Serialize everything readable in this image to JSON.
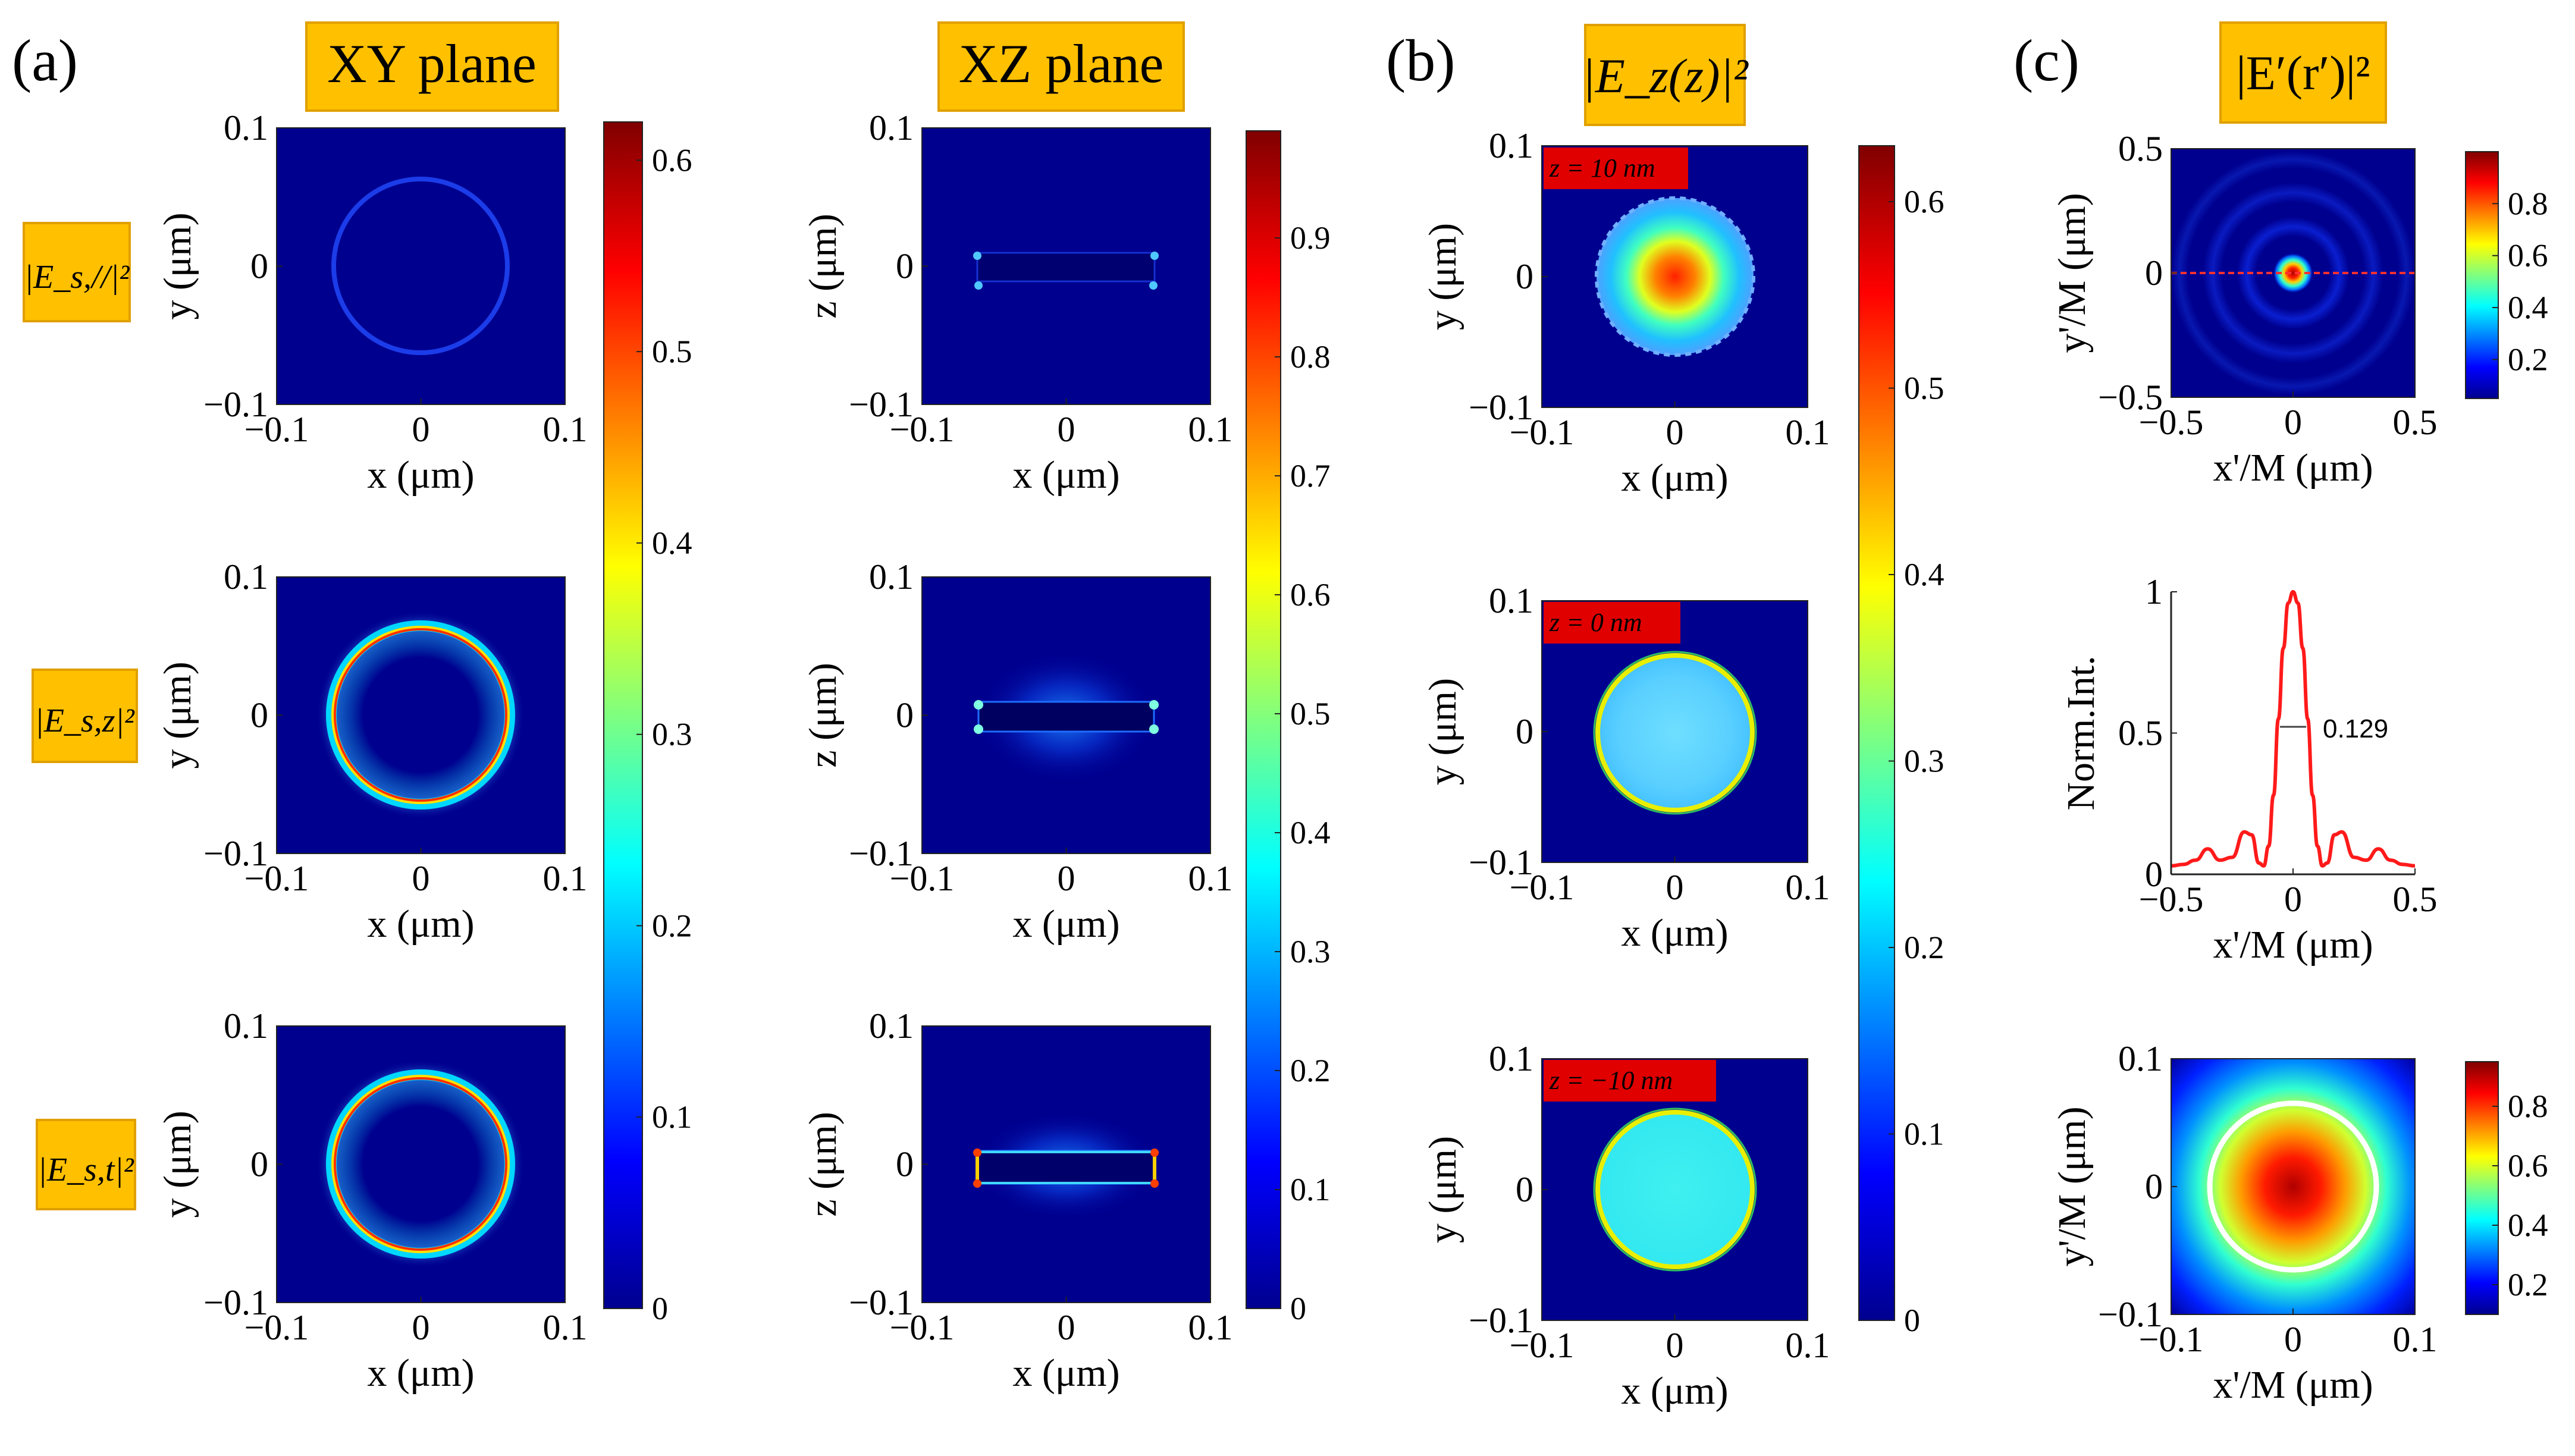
{
  "panel_labels": [
    "(a)",
    "(b)",
    "(c)"
  ],
  "column_headers": {
    "xy": "XY plane",
    "xz": "XZ plane",
    "b": "|E_z(z)|²",
    "c": "|E′(r′)|²"
  },
  "row_labels": [
    "|E_s,//|²",
    "|E_s,z|²",
    "|E_s,t|²"
  ],
  "z_tags": [
    "z = 10 nm",
    "z = 0 nm",
    "z = −10 nm"
  ],
  "colors": {
    "badge": "#FFC000",
    "badge_border": "#E0A000",
    "field_bg": "#00008F",
    "red_tag": "#E00000",
    "profile_line": "#FF1A1A"
  },
  "chart_data": [
    {
      "type": "heatmap",
      "panel": "a",
      "row": 1,
      "plane": "XY",
      "title": "XY plane",
      "xlabel": "x (μm)",
      "ylabel": "y (μm)",
      "xlim": [
        -0.1,
        0.1
      ],
      "ylim": [
        -0.1,
        0.1
      ],
      "xticks": [
        "−0.1",
        "0",
        "0.1"
      ],
      "yticks": [
        "0.1",
        "0",
        "−0.1"
      ],
      "feature": "faint ring of radius 0.06 μm",
      "cbar": "a_xy"
    },
    {
      "type": "heatmap",
      "panel": "a",
      "row": 2,
      "plane": "XY",
      "xlabel": "x (μm)",
      "ylabel": "y (μm)",
      "xlim": [
        -0.1,
        0.1
      ],
      "ylim": [
        -0.1,
        0.1
      ],
      "xticks": [
        "−0.1",
        "0",
        "0.1"
      ],
      "yticks": [
        "0.1",
        "0",
        "−0.1"
      ],
      "feature": "bright ring of radius 0.06 μm",
      "cbar": "a_xy"
    },
    {
      "type": "heatmap",
      "panel": "a",
      "row": 3,
      "plane": "XY",
      "xlabel": "x (μm)",
      "ylabel": "y (μm)",
      "xlim": [
        -0.1,
        0.1
      ],
      "ylim": [
        -0.1,
        0.1
      ],
      "xticks": [
        "−0.1",
        "0",
        "0.1"
      ],
      "yticks": [
        "0.1",
        "0",
        "−0.1"
      ],
      "feature": "bright ring of radius 0.06 μm",
      "cbar": "a_xy"
    },
    {
      "type": "heatmap",
      "panel": "a",
      "row": 1,
      "plane": "XZ",
      "title": "XZ plane",
      "xlabel": "x (μm)",
      "ylabel": "z (μm)",
      "xlim": [
        -0.1,
        0.1
      ],
      "ylim": [
        -0.1,
        0.1
      ],
      "xticks": [
        "−0.1",
        "0",
        "0.1"
      ],
      "yticks": [
        "0.1",
        "0",
        "−0.1"
      ],
      "feature": "thin slab from x = −0.06 to 0.06 μm with weak edge hot spots",
      "cbar": "a_xz"
    },
    {
      "type": "heatmap",
      "panel": "a",
      "row": 2,
      "plane": "XZ",
      "xlabel": "x (μm)",
      "ylabel": "z (μm)",
      "xlim": [
        -0.1,
        0.1
      ],
      "ylim": [
        -0.1,
        0.1
      ],
      "xticks": [
        "−0.1",
        "0",
        "0.1"
      ],
      "yticks": [
        "0.1",
        "0",
        "−0.1"
      ],
      "feature": "thin slab with glow above and below",
      "cbar": "a_xz"
    },
    {
      "type": "heatmap",
      "panel": "a",
      "row": 3,
      "plane": "XZ",
      "xlabel": "x (μm)",
      "ylabel": "z (μm)",
      "xlim": [
        -0.1,
        0.1
      ],
      "ylim": [
        -0.1,
        0.1
      ],
      "xticks": [
        "−0.1",
        "0",
        "0.1"
      ],
      "yticks": [
        "0.1",
        "0",
        "−0.1"
      ],
      "feature": "thin slab with bright edges",
      "cbar": "a_xz"
    },
    {
      "type": "heatmap",
      "panel": "b",
      "row": 1,
      "z_nm": 10,
      "xlabel": "x (μm)",
      "ylabel": "y (μm)",
      "xlim": [
        -0.1,
        0.1
      ],
      "ylim": [
        -0.1,
        0.1
      ],
      "xticks": [
        "−0.1",
        "0",
        "0.1"
      ],
      "yticks": [
        "0.1",
        "0",
        "−0.1"
      ],
      "feature": "disk of radius 0.06 μm, peak about 0.62 at centre",
      "cbar": "b"
    },
    {
      "type": "heatmap",
      "panel": "b",
      "row": 2,
      "z_nm": 0,
      "xlabel": "x (μm)",
      "ylabel": "y (μm)",
      "xlim": [
        -0.1,
        0.1
      ],
      "ylim": [
        -0.1,
        0.1
      ],
      "xticks": [
        "−0.1",
        "0",
        "0.1"
      ],
      "yticks": [
        "0.1",
        "0",
        "−0.1"
      ],
      "feature": "uniform disk about 0.25 with bright rim",
      "cbar": "b"
    },
    {
      "type": "heatmap",
      "panel": "b",
      "row": 3,
      "z_nm": -10,
      "xlabel": "x (μm)",
      "ylabel": "y (μm)",
      "xlim": [
        -0.1,
        0.1
      ],
      "ylim": [
        -0.1,
        0.1
      ],
      "xticks": [
        "−0.1",
        "0",
        "0.1"
      ],
      "yticks": [
        "0.1",
        "0",
        "−0.1"
      ],
      "feature": "uniform disk about 0.3 with bright rim",
      "cbar": "b"
    },
    {
      "type": "heatmap",
      "panel": "c",
      "row": 1,
      "xlabel": "x'/M (μm)",
      "ylabel": "y'/M (μm)",
      "xlim": [
        -0.5,
        0.5
      ],
      "ylim": [
        -0.5,
        0.5
      ],
      "xticks": [
        "−0.5",
        "0",
        "0.5"
      ],
      "yticks": [
        "0.5",
        "0",
        "−0.5"
      ],
      "feature": "Airy-like spot with concentric rings",
      "cbar": "c1"
    },
    {
      "type": "line",
      "panel": "c",
      "row": 2,
      "xlabel": "x'/M (μm)",
      "ylabel": "Norm.Int.",
      "xlim": [
        -0.5,
        0.5
      ],
      "ylim": [
        0,
        1
      ],
      "xticks": [
        "−0.5",
        "0",
        "0.5"
      ],
      "yticks": [
        "1",
        "0.5",
        "0"
      ],
      "fwhm_label": "0.129",
      "x": [
        -0.5,
        -0.45,
        -0.4,
        -0.35,
        -0.3,
        -0.25,
        -0.2,
        -0.17,
        -0.14,
        -0.12,
        -0.1,
        -0.08,
        -0.06,
        -0.04,
        -0.02,
        0,
        0.02,
        0.04,
        0.06,
        0.08,
        0.1,
        0.12,
        0.14,
        0.17,
        0.2,
        0.25,
        0.3,
        0.35,
        0.4,
        0.45,
        0.5
      ],
      "y": [
        0.03,
        0.035,
        0.05,
        0.09,
        0.05,
        0.06,
        0.15,
        0.14,
        0.04,
        0.03,
        0.1,
        0.28,
        0.55,
        0.8,
        0.96,
        1.0,
        0.96,
        0.8,
        0.55,
        0.28,
        0.1,
        0.03,
        0.04,
        0.14,
        0.15,
        0.06,
        0.05,
        0.09,
        0.05,
        0.035,
        0.03
      ]
    },
    {
      "type": "heatmap",
      "panel": "c",
      "row": 3,
      "xlabel": "x'/M (μm)",
      "ylabel": "y'/M (μm)",
      "xlim": [
        -0.1,
        0.1
      ],
      "ylim": [
        -0.1,
        0.1
      ],
      "xticks": [
        "−0.1",
        "0",
        "0.1"
      ],
      "yticks": [
        "0.1",
        "0",
        "−0.1"
      ],
      "feature": "broad central spot with white circle outline of radius 0.06 μm",
      "cbar": "c3"
    }
  ],
  "colorbars": {
    "a_xy": {
      "min": 0,
      "max": 0.62,
      "ticks": [
        "0",
        "0.1",
        "0.2",
        "0.3",
        "0.4",
        "0.5",
        "0.6"
      ]
    },
    "a_xz": {
      "min": 0,
      "max": 0.99,
      "ticks": [
        "0",
        "0.1",
        "0.2",
        "0.3",
        "0.4",
        "0.5",
        "0.6",
        "0.7",
        "0.8",
        "0.9"
      ]
    },
    "b": {
      "min": 0,
      "max": 0.63,
      "ticks": [
        "0",
        "0.1",
        "0.2",
        "0.3",
        "0.4",
        "0.5",
        "0.6"
      ]
    },
    "c1": {
      "min": 0.05,
      "max": 1.0,
      "ticks": [
        "0.2",
        "0.4",
        "0.6",
        "0.8"
      ]
    },
    "c3": {
      "min": 0.1,
      "max": 0.95,
      "ticks": [
        "0.2",
        "0.4",
        "0.6",
        "0.8"
      ]
    }
  }
}
